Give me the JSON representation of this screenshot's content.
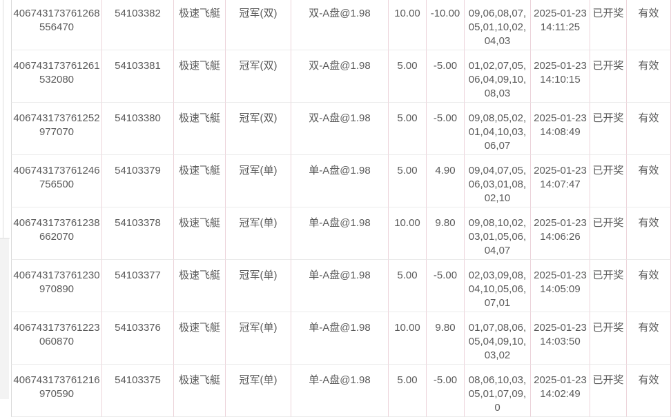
{
  "colors": {
    "column_border": "#ecd3da",
    "row_border": "#ebebeb",
    "table_outer_border": "#d9d9d9",
    "text": "#5a5a5a",
    "left_panel_divider": "#dddddd",
    "left_panel_lower_bg": "#f3f3f3",
    "row_background": "#ffffff"
  },
  "rows": [
    {
      "bet_id": "406743173761268556470",
      "order_no": "54103382",
      "game": "极速飞艇",
      "play_type": "冠军(双)",
      "bet_content": "双-A盘@1.98",
      "amount": "10.00",
      "win_loss": "-10.00",
      "draw_result": "09,06,08,07,05,01,10,02,04,03",
      "draw_time": "2025-01-23 14:11:25",
      "draw_status": "已开奖",
      "validity": "有效"
    },
    {
      "bet_id": "406743173761261532080",
      "order_no": "54103381",
      "game": "极速飞艇",
      "play_type": "冠军(双)",
      "bet_content": "双-A盘@1.98",
      "amount": "5.00",
      "win_loss": "-5.00",
      "draw_result": "01,02,07,05,06,04,09,10,08,03",
      "draw_time": "2025-01-23 14:10:15",
      "draw_status": "已开奖",
      "validity": "有效"
    },
    {
      "bet_id": "406743173761252977070",
      "order_no": "54103380",
      "game": "极速飞艇",
      "play_type": "冠军(双)",
      "bet_content": "双-A盘@1.98",
      "amount": "5.00",
      "win_loss": "-5.00",
      "draw_result": "09,08,05,02,01,04,10,03,06,07",
      "draw_time": "2025-01-23 14:08:49",
      "draw_status": "已开奖",
      "validity": "有效"
    },
    {
      "bet_id": "406743173761246756500",
      "order_no": "54103379",
      "game": "极速飞艇",
      "play_type": "冠军(单)",
      "bet_content": "单-A盘@1.98",
      "amount": "5.00",
      "win_loss": "4.90",
      "draw_result": "09,04,07,05,06,03,01,08,02,10",
      "draw_time": "2025-01-23 14:07:47",
      "draw_status": "已开奖",
      "validity": "有效"
    },
    {
      "bet_id": "406743173761238662070",
      "order_no": "54103378",
      "game": "极速飞艇",
      "play_type": "冠军(单)",
      "bet_content": "单-A盘@1.98",
      "amount": "10.00",
      "win_loss": "9.80",
      "draw_result": "09,08,10,02,03,01,05,06,04,07",
      "draw_time": "2025-01-23 14:06:26",
      "draw_status": "已开奖",
      "validity": "有效"
    },
    {
      "bet_id": "406743173761230970890",
      "order_no": "54103377",
      "game": "极速飞艇",
      "play_type": "冠军(单)",
      "bet_content": "单-A盘@1.98",
      "amount": "5.00",
      "win_loss": "-5.00",
      "draw_result": "02,03,09,08,04,10,05,06,07,01",
      "draw_time": "2025-01-23 14:05:09",
      "draw_status": "已开奖",
      "validity": "有效"
    },
    {
      "bet_id": "406743173761223060870",
      "order_no": "54103376",
      "game": "极速飞艇",
      "play_type": "冠军(单)",
      "bet_content": "单-A盘@1.98",
      "amount": "10.00",
      "win_loss": "9.80",
      "draw_result": "01,07,08,06,05,04,09,10,03,02",
      "draw_time": "2025-01-23 14:03:50",
      "draw_status": "已开奖",
      "validity": "有效"
    },
    {
      "bet_id": "406743173761216970590",
      "order_no": "54103375",
      "game": "极速飞艇",
      "play_type": "冠军(单)",
      "bet_content": "单-A盘@1.98",
      "amount": "5.00",
      "win_loss": "-5.00",
      "draw_result": "08,06,10,03,05,01,07,09,0",
      "draw_time": "2025-01-23 14:02:49",
      "draw_status": "已开奖",
      "validity": "有效"
    }
  ]
}
